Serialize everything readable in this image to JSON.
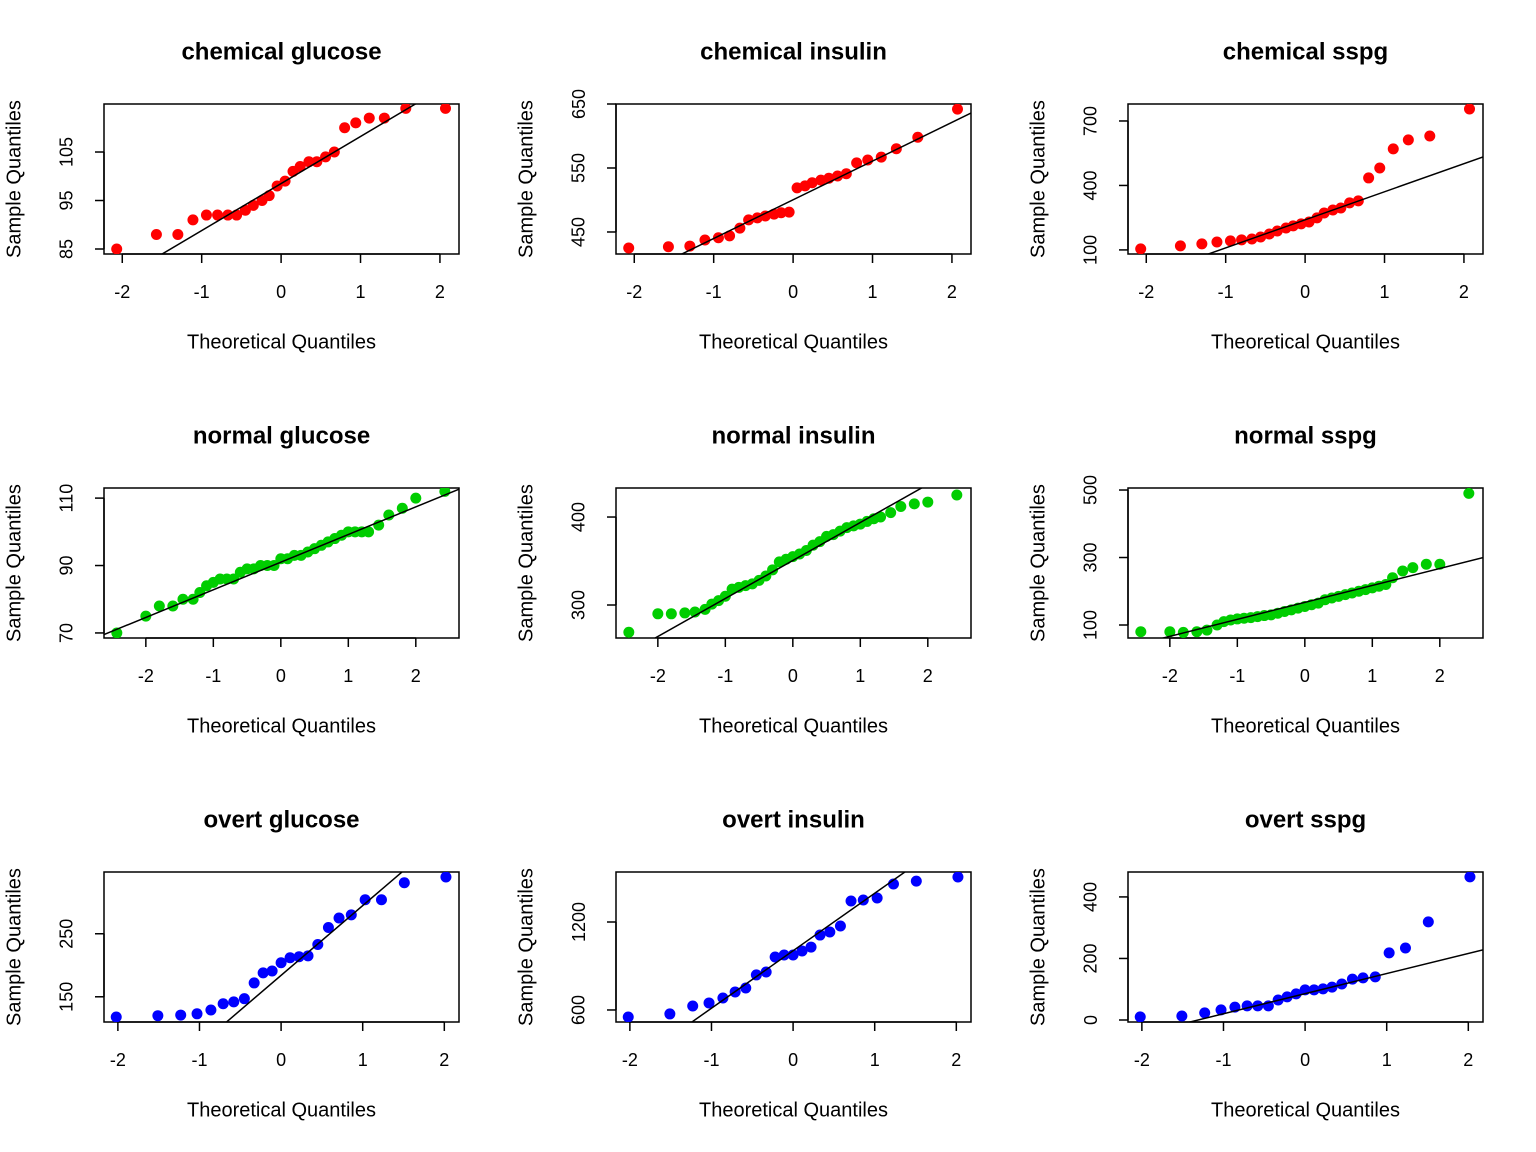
{
  "chart_data": [
    {
      "type": "qq",
      "title": "chemical glucose",
      "x_label": "Theoretical Quantiles",
      "y_label": "Sample Quantiles",
      "color": "#ff0000",
      "x": [
        -2.07,
        -1.57,
        -1.3,
        -1.11,
        -0.94,
        -0.8,
        -0.67,
        -0.56,
        -0.45,
        -0.35,
        -0.24,
        -0.15,
        -0.05,
        0.05,
        0.15,
        0.24,
        0.35,
        0.45,
        0.56,
        0.67,
        0.8,
        0.94,
        1.11,
        1.3,
        1.57,
        2.07
      ],
      "values": [
        85,
        88,
        88,
        91,
        92,
        92,
        92,
        92,
        93,
        94,
        95,
        96,
        98,
        99,
        101,
        102,
        103,
        103,
        104,
        105,
        110,
        111,
        112,
        112,
        114,
        114
      ],
      "fit_line": {
        "intercept": 98.5,
        "slope": 9.7
      },
      "xlim": [
        -2.23,
        2.24
      ],
      "xticks": [
        -2,
        -1,
        0,
        1,
        2
      ],
      "ylim": [
        83.97,
        114.9
      ],
      "yticks": [
        85,
        95,
        105
      ]
    },
    {
      "type": "qq",
      "title": "chemical insulin",
      "x_label": "Theoretical Quantiles",
      "y_label": "Sample Quantiles",
      "color": "#ff0000",
      "x": [
        -2.07,
        -1.57,
        -1.3,
        -1.11,
        -0.94,
        -0.8,
        -0.67,
        -0.56,
        -0.45,
        -0.35,
        -0.24,
        -0.15,
        -0.05,
        0.05,
        0.15,
        0.24,
        0.35,
        0.45,
        0.56,
        0.67,
        0.8,
        0.94,
        1.11,
        1.3,
        1.57,
        2.07
      ],
      "values": [
        425,
        427,
        428,
        437.5,
        441,
        444,
        456,
        469,
        472,
        475,
        478,
        480,
        481,
        519,
        522,
        527,
        531,
        534,
        537.5,
        541,
        558,
        562.5,
        567,
        580,
        598,
        642
      ],
      "fit_line": {
        "intercept": 500.3,
        "slope": 60.5
      },
      "xlim": [
        -2.23,
        2.24
      ],
      "xticks": [
        -2,
        -1,
        0,
        1,
        2
      ],
      "ylim": [
        415.6,
        650
      ],
      "yticks": [
        450,
        550,
        650
      ]
    },
    {
      "type": "qq",
      "title": "chemical sspg",
      "x_label": "Theoretical Quantiles",
      "y_label": "Sample Quantiles",
      "color": "#ff0000",
      "x": [
        -2.07,
        -1.57,
        -1.3,
        -1.11,
        -0.94,
        -0.8,
        -0.67,
        -0.56,
        -0.45,
        -0.35,
        -0.24,
        -0.15,
        -0.05,
        0.05,
        0.15,
        0.24,
        0.35,
        0.45,
        0.56,
        0.67,
        0.8,
        0.94,
        1.11,
        1.3,
        1.57,
        2.07
      ],
      "values": [
        105,
        119,
        128,
        137,
        142,
        147,
        151,
        160,
        174,
        188,
        202,
        212,
        221,
        230,
        249,
        272,
        286,
        295,
        319,
        328,
        435,
        481,
        570,
        612,
        630,
        756
      ],
      "fit_line": {
        "intercept": 240,
        "slope": 130.6
      },
      "xlim": [
        -2.23,
        2.24
      ],
      "xticks": [
        -2,
        -1,
        0,
        1,
        2
      ],
      "ylim": [
        81,
        779
      ],
      "yticks": [
        100,
        400,
        700
      ]
    },
    {
      "type": "qq",
      "title": "normal glucose",
      "x_label": "Theoretical Quantiles",
      "y_label": "Sample Quantiles",
      "color": "#00cd00",
      "x": [
        -2.43,
        -2.0,
        -1.8,
        -1.6,
        -1.45,
        -1.3,
        -1.2,
        -1.1,
        -1.0,
        -0.9,
        -0.8,
        -0.7,
        -0.6,
        -0.5,
        -0.4,
        -0.3,
        -0.2,
        -0.1,
        0,
        0.1,
        0.2,
        0.3,
        0.4,
        0.5,
        0.6,
        0.7,
        0.8,
        0.9,
        1.0,
        1.1,
        1.2,
        1.3,
        1.45,
        1.6,
        1.8,
        2.0,
        2.43
      ],
      "values": [
        70,
        75,
        78,
        78,
        80,
        80,
        82,
        84,
        85,
        86,
        86,
        86,
        88,
        89,
        89,
        90,
        90,
        90,
        92,
        92,
        93,
        93,
        94,
        95,
        96,
        97,
        98,
        99,
        100,
        100,
        100,
        100,
        102,
        105,
        107,
        110,
        112
      ],
      "fit_line": {
        "intercept": 91,
        "slope": 8.2
      },
      "xlim": [
        -2.62,
        2.64
      ],
      "xticks": [
        -2,
        -1,
        0,
        1,
        2
      ],
      "ylim": [
        68.5,
        113
      ],
      "yticks": [
        70,
        90,
        110
      ]
    },
    {
      "type": "qq",
      "title": "normal insulin",
      "x_label": "Theoretical Quantiles",
      "y_label": "Sample Quantiles",
      "color": "#00cd00",
      "x": [
        -2.43,
        -2.0,
        -1.8,
        -1.6,
        -1.45,
        -1.3,
        -1.2,
        -1.1,
        -1.0,
        -0.9,
        -0.8,
        -0.7,
        -0.6,
        -0.5,
        -0.4,
        -0.3,
        -0.2,
        -0.1,
        0,
        0.1,
        0.2,
        0.3,
        0.4,
        0.5,
        0.6,
        0.7,
        0.8,
        0.9,
        1.0,
        1.1,
        1.2,
        1.3,
        1.45,
        1.6,
        1.8,
        2.0,
        2.43
      ],
      "values": [
        269,
        290,
        290,
        291,
        292,
        295,
        301,
        305,
        310,
        318,
        320,
        322,
        324,
        328,
        333,
        340,
        349,
        352,
        355,
        358,
        362,
        368,
        372,
        378,
        380,
        384,
        388,
        390,
        392,
        395,
        398,
        400,
        405,
        412,
        415,
        417,
        425
      ],
      "fit_line": {
        "intercept": 350.6,
        "slope": 43.2
      },
      "xlim": [
        -2.62,
        2.64
      ],
      "xticks": [
        -2,
        -1,
        0,
        1,
        2
      ],
      "ylim": [
        262.5,
        433
      ],
      "yticks": [
        300,
        400
      ]
    },
    {
      "type": "qq",
      "title": "normal sspg",
      "x_label": "Theoretical Quantiles",
      "y_label": "Sample Quantiles",
      "color": "#00cd00",
      "x": [
        -2.43,
        -2.0,
        -1.8,
        -1.6,
        -1.45,
        -1.3,
        -1.2,
        -1.1,
        -1.0,
        -0.9,
        -0.8,
        -0.7,
        -0.6,
        -0.5,
        -0.4,
        -0.3,
        -0.2,
        -0.1,
        0,
        0.1,
        0.2,
        0.3,
        0.4,
        0.5,
        0.6,
        0.7,
        0.8,
        0.9,
        1.0,
        1.1,
        1.2,
        1.3,
        1.45,
        1.6,
        1.8,
        2.0,
        2.43
      ],
      "values": [
        80,
        80,
        78,
        80,
        85,
        100,
        110,
        115,
        118,
        120,
        122,
        125,
        128,
        130,
        135,
        140,
        145,
        150,
        155,
        160,
        165,
        175,
        180,
        185,
        190,
        195,
        200,
        205,
        210,
        215,
        220,
        240,
        260,
        270,
        280,
        280,
        490
      ],
      "fit_line": {
        "intercept": 167,
        "slope": 50.3
      },
      "xlim": [
        -2.62,
        2.64
      ],
      "xticks": [
        -2,
        -1,
        0,
        1,
        2
      ],
      "ylim": [
        61.5,
        506
      ],
      "yticks": [
        100,
        300,
        500
      ]
    },
    {
      "type": "qq",
      "title": "overt glucose",
      "x_label": "Theoretical Quantiles",
      "y_label": "Sample Quantiles",
      "color": "#0000ff",
      "x": [
        -2.02,
        -1.51,
        -1.23,
        -1.03,
        -0.86,
        -0.71,
        -0.58,
        -0.45,
        -0.33,
        -0.22,
        -0.11,
        0,
        0.11,
        0.22,
        0.33,
        0.45,
        0.58,
        0.71,
        0.86,
        1.03,
        1.23,
        1.51,
        2.02
      ],
      "values": [
        118,
        120,
        121,
        123,
        129,
        139,
        142,
        147,
        172,
        188,
        191,
        204,
        212,
        213.5,
        215,
        233,
        260,
        275,
        280,
        304,
        304,
        331,
        340
      ],
      "fit_line": {
        "intercept": 184,
        "slope": 110.7
      },
      "xlim": [
        -2.17,
        2.18
      ],
      "xticks": [
        -2,
        -1,
        0,
        1,
        2
      ],
      "ylim": [
        110,
        348
      ],
      "yticks": [
        150,
        250
      ]
    },
    {
      "type": "qq",
      "title": "overt insulin",
      "x_label": "Theoretical Quantiles",
      "y_label": "Sample Quantiles",
      "color": "#0000ff",
      "x": [
        -2.02,
        -1.51,
        -1.23,
        -1.03,
        -0.86,
        -0.71,
        -0.58,
        -0.45,
        -0.33,
        -0.22,
        -0.11,
        0,
        0.11,
        0.22,
        0.33,
        0.45,
        0.58,
        0.71,
        0.86,
        1.03,
        1.23,
        1.51,
        2.02
      ],
      "values": [
        552,
        573,
        627,
        648,
        682,
        723,
        750,
        839,
        859,
        961,
        975,
        975,
        1002,
        1029,
        1111,
        1132,
        1173,
        1343,
        1350,
        1364,
        1459,
        1479,
        1507
      ],
      "fit_line": {
        "intercept": 1004,
        "slope": 392
      },
      "xlim": [
        -2.17,
        2.18
      ],
      "xticks": [
        -2,
        -1,
        0,
        1,
        2
      ],
      "ylim": [
        518,
        1541
      ],
      "yticks": [
        600,
        1200
      ]
    },
    {
      "type": "qq",
      "title": "overt sspg",
      "x_label": "Theoretical Quantiles",
      "y_label": "Sample Quantiles",
      "color": "#0000ff",
      "x": [
        -2.02,
        -1.51,
        -1.23,
        -1.03,
        -0.86,
        -0.71,
        -0.58,
        -0.45,
        -0.33,
        -0.22,
        -0.11,
        0,
        0.11,
        0.22,
        0.33,
        0.45,
        0.58,
        0.71,
        0.86,
        1.03,
        1.23,
        1.51,
        2.02
      ],
      "values": [
        10,
        13,
        23,
        33,
        42,
        46,
        46,
        46,
        65,
        75,
        85,
        98,
        98,
        101,
        107,
        117,
        133,
        137,
        140,
        218,
        234,
        319,
        465
      ],
      "fit_line": {
        "intercept": 85.6,
        "slope": 65.3
      },
      "xlim": [
        -2.17,
        2.18
      ],
      "xticks": [
        -2,
        -1,
        0,
        1,
        2
      ],
      "ylim": [
        -6.5,
        481
      ],
      "yticks": [
        0,
        200,
        400
      ]
    }
  ]
}
